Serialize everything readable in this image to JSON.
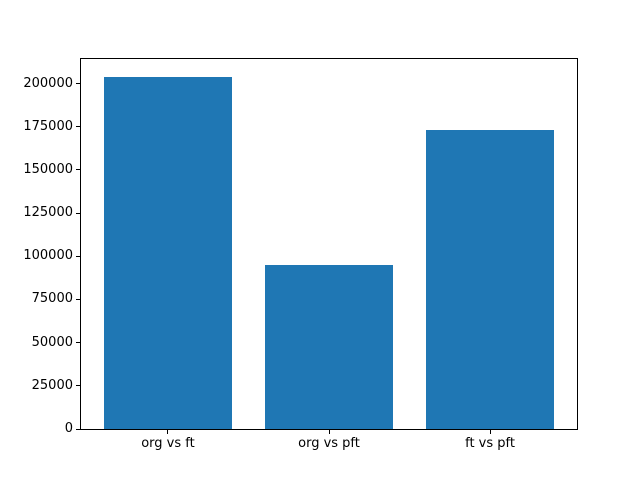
{
  "chart_data": {
    "type": "bar",
    "title": "",
    "xlabel": "",
    "ylabel": "",
    "categories": [
      "org vs ft",
      "org vs pft",
      "ft vs pft"
    ],
    "values": [
      204000,
      95000,
      173000
    ],
    "ylim": [
      0,
      214200
    ],
    "yticks": [
      "0",
      "25000",
      "50000",
      "75000",
      "100000",
      "125000",
      "150000",
      "175000",
      "200000"
    ],
    "bar_color": "#1f77b4",
    "bar_rel_width": 0.8,
    "grid": false,
    "legend": "none",
    "frame_color": "#000000",
    "background_color": "#ffffff"
  }
}
